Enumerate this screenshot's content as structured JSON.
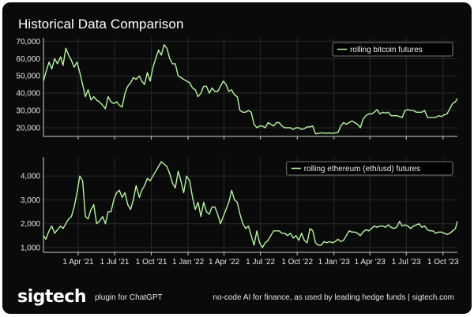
{
  "title": "Historical Data Comparison",
  "colors": {
    "background": "#0a0a0a",
    "line": "#b5f5a0",
    "grid": "#2a2a2a",
    "text": "#e8e8e8"
  },
  "footer": {
    "logo": "sigtech",
    "plugin": "plugin for ChatGPT",
    "tagline": "no-code AI for finance, as used by leading hedge funds | sigtech.com"
  },
  "chart_data": [
    {
      "type": "line",
      "title": "Historical Data Comparison",
      "series": [
        {
          "name": "rolling bitcoin futures",
          "x": [
            "2021-01-04",
            "2021-01-10",
            "2021-01-18",
            "2021-01-25",
            "2021-02-01",
            "2021-02-08",
            "2021-02-16",
            "2021-02-22",
            "2021-03-01",
            "2021-03-08",
            "2021-03-15",
            "2021-03-22",
            "2021-03-29",
            "2021-04-05",
            "2021-04-12",
            "2021-04-19",
            "2021-04-26",
            "2021-05-03",
            "2021-05-10",
            "2021-05-17",
            "2021-05-24",
            "2021-06-01",
            "2021-06-08",
            "2021-06-15",
            "2021-06-22",
            "2021-06-29",
            "2021-07-06",
            "2021-07-13",
            "2021-07-20",
            "2021-07-27",
            "2021-08-03",
            "2021-08-10",
            "2021-08-17",
            "2021-08-24",
            "2021-09-01",
            "2021-09-07",
            "2021-09-14",
            "2021-09-21",
            "2021-09-28",
            "2021-10-05",
            "2021-10-12",
            "2021-10-19",
            "2021-10-26",
            "2021-11-02",
            "2021-11-09",
            "2021-11-16",
            "2021-11-23",
            "2021-11-30",
            "2021-12-07",
            "2021-12-14",
            "2021-12-21",
            "2021-12-28",
            "2022-01-05",
            "2022-01-12",
            "2022-01-19",
            "2022-01-26",
            "2022-02-02",
            "2022-02-09",
            "2022-02-16",
            "2022-02-23",
            "2022-03-02",
            "2022-03-09",
            "2022-03-16",
            "2022-03-23",
            "2022-03-30",
            "2022-04-06",
            "2022-04-13",
            "2022-04-20",
            "2022-04-27",
            "2022-05-04",
            "2022-05-11",
            "2022-05-18",
            "2022-05-25",
            "2022-06-01",
            "2022-06-08",
            "2022-06-15",
            "2022-06-22",
            "2022-06-29",
            "2022-07-06",
            "2022-07-13",
            "2022-07-20",
            "2022-07-27",
            "2022-08-03",
            "2022-08-10",
            "2022-08-17",
            "2022-08-24",
            "2022-08-31",
            "2022-09-07",
            "2022-09-14",
            "2022-09-21",
            "2022-09-28",
            "2022-10-05",
            "2022-10-12",
            "2022-10-19",
            "2022-10-26",
            "2022-11-02",
            "2022-11-09",
            "2022-11-16",
            "2022-11-23",
            "2022-11-30",
            "2022-12-07",
            "2022-12-14",
            "2022-12-21",
            "2022-12-28",
            "2023-01-04",
            "2023-01-11",
            "2023-01-18",
            "2023-01-25",
            "2023-02-01",
            "2023-02-08",
            "2023-02-15",
            "2023-02-22",
            "2023-03-01",
            "2023-03-08",
            "2023-03-15",
            "2023-03-22",
            "2023-03-29",
            "2023-04-05",
            "2023-04-12",
            "2023-04-19",
            "2023-04-26",
            "2023-05-03",
            "2023-05-10",
            "2023-05-17",
            "2023-05-24",
            "2023-05-31",
            "2023-06-07",
            "2023-06-14",
            "2023-06-21",
            "2023-06-28",
            "2023-07-05",
            "2023-07-12",
            "2023-07-19",
            "2023-07-26",
            "2023-08-02",
            "2023-08-09",
            "2023-08-16",
            "2023-08-23",
            "2023-08-30",
            "2023-09-06",
            "2023-09-13",
            "2023-09-20",
            "2023-09-27",
            "2023-10-04",
            "2023-10-11",
            "2023-10-18",
            "2023-10-25",
            "2023-11-01",
            "2023-11-06"
          ],
          "values": [
            47000,
            52000,
            58000,
            54000,
            60000,
            57000,
            61000,
            56000,
            66000,
            62000,
            59000,
            55000,
            58000,
            52000,
            45000,
            38000,
            42000,
            36000,
            38000,
            36000,
            35000,
            33000,
            31000,
            38000,
            35000,
            34000,
            35000,
            33000,
            32000,
            40000,
            44000,
            46000,
            49000,
            48000,
            50000,
            47000,
            45000,
            52000,
            47000,
            55000,
            60000,
            65000,
            62000,
            68000,
            66000,
            60000,
            57000,
            57000,
            50000,
            49000,
            48000,
            47000,
            46000,
            43000,
            42000,
            38000,
            40000,
            44000,
            44000,
            40000,
            43000,
            41000,
            41000,
            44000,
            47000,
            45000,
            41000,
            42000,
            39000,
            38000,
            30000,
            29000,
            29000,
            30000,
            29000,
            22000,
            20000,
            21000,
            21000,
            20000,
            23000,
            22000,
            21000,
            23000,
            23000,
            21000,
            20000,
            20000,
            20000,
            19000,
            20000,
            20000,
            19000,
            19500,
            20500,
            20500,
            21000,
            16500,
            16800,
            17000,
            17000,
            16800,
            17000,
            16800,
            17000,
            17300,
            21000,
            23000,
            22000,
            23000,
            24000,
            23000,
            22000,
            20000,
            25000,
            27000,
            28000,
            28000,
            29000,
            30500,
            28000,
            29000,
            28500,
            29000,
            27000,
            27000,
            27000,
            26500,
            26000,
            30000,
            30500,
            30000,
            30000,
            29000,
            29000,
            29000,
            30000,
            26000,
            26000,
            26000,
            26000,
            27000,
            26500,
            27500,
            28000,
            31000,
            34000,
            35000,
            37000
          ]
        },
        {
          "name": "rolling ethereum (eth/usd) futures",
          "x": [
            "2021-01-04",
            "2021-01-10",
            "2021-01-18",
            "2021-01-25",
            "2021-02-01",
            "2021-02-08",
            "2021-02-16",
            "2021-02-22",
            "2021-03-01",
            "2021-03-08",
            "2021-03-15",
            "2021-03-22",
            "2021-03-29",
            "2021-04-05",
            "2021-04-12",
            "2021-04-19",
            "2021-04-26",
            "2021-05-03",
            "2021-05-10",
            "2021-05-17",
            "2021-05-24",
            "2021-06-01",
            "2021-06-08",
            "2021-06-15",
            "2021-06-22",
            "2021-06-29",
            "2021-07-06",
            "2021-07-13",
            "2021-07-20",
            "2021-07-27",
            "2021-08-03",
            "2021-08-10",
            "2021-08-17",
            "2021-08-24",
            "2021-09-01",
            "2021-09-07",
            "2021-09-14",
            "2021-09-21",
            "2021-09-28",
            "2021-10-05",
            "2021-10-12",
            "2021-10-19",
            "2021-10-26",
            "2021-11-02",
            "2021-11-09",
            "2021-11-16",
            "2021-11-23",
            "2021-11-30",
            "2021-12-07",
            "2021-12-14",
            "2021-12-21",
            "2021-12-28",
            "2022-01-05",
            "2022-01-12",
            "2022-01-19",
            "2022-01-26",
            "2022-02-02",
            "2022-02-09",
            "2022-02-16",
            "2022-02-23",
            "2022-03-02",
            "2022-03-09",
            "2022-03-16",
            "2022-03-23",
            "2022-03-30",
            "2022-04-06",
            "2022-04-13",
            "2022-04-20",
            "2022-04-27",
            "2022-05-04",
            "2022-05-11",
            "2022-05-18",
            "2022-05-25",
            "2022-06-01",
            "2022-06-08",
            "2022-06-15",
            "2022-06-22",
            "2022-06-29",
            "2022-07-06",
            "2022-07-13",
            "2022-07-20",
            "2022-07-27",
            "2022-08-03",
            "2022-08-10",
            "2022-08-17",
            "2022-08-24",
            "2022-08-31",
            "2022-09-07",
            "2022-09-14",
            "2022-09-21",
            "2022-09-28",
            "2022-10-05",
            "2022-10-12",
            "2022-10-19",
            "2022-10-26",
            "2022-11-02",
            "2022-11-09",
            "2022-11-16",
            "2022-11-23",
            "2022-11-30",
            "2022-12-07",
            "2022-12-14",
            "2022-12-21",
            "2022-12-28",
            "2023-01-04",
            "2023-01-11",
            "2023-01-18",
            "2023-01-25",
            "2023-02-01",
            "2023-02-08",
            "2023-02-15",
            "2023-02-22",
            "2023-03-01",
            "2023-03-08",
            "2023-03-15",
            "2023-03-22",
            "2023-03-29",
            "2023-04-05",
            "2023-04-12",
            "2023-04-19",
            "2023-04-26",
            "2023-05-03",
            "2023-05-10",
            "2023-05-17",
            "2023-05-24",
            "2023-05-31",
            "2023-06-07",
            "2023-06-14",
            "2023-06-21",
            "2023-06-28",
            "2023-07-05",
            "2023-07-12",
            "2023-07-19",
            "2023-07-26",
            "2023-08-02",
            "2023-08-09",
            "2023-08-16",
            "2023-08-23",
            "2023-08-30",
            "2023-09-06",
            "2023-09-13",
            "2023-09-20",
            "2023-09-27",
            "2023-10-04",
            "2023-10-11",
            "2023-10-18",
            "2023-10-25",
            "2023-11-01",
            "2023-11-06"
          ],
          "values": [
            1500,
            1350,
            1700,
            1900,
            1600,
            1750,
            1900,
            1800,
            2000,
            2200,
            2300,
            2700,
            3300,
            4000,
            3800,
            2300,
            2200,
            2600,
            2800,
            2000,
            2100,
            2300,
            2000,
            2500,
            2500,
            3000,
            3300,
            3400,
            3100,
            3300,
            2800,
            2600,
            3000,
            3600,
            3100,
            3400,
            3600,
            3900,
            3800,
            4000,
            4200,
            4400,
            4600,
            4500,
            4400,
            4100,
            3700,
            3500,
            4200,
            3800,
            3300,
            4000,
            3800,
            3100,
            2600,
            2900,
            2300,
            2900,
            2500,
            2400,
            2700,
            2700,
            2400,
            2000,
            2300,
            2600,
            2900,
            3400,
            3000,
            2900,
            2400,
            2000,
            1800,
            1900,
            1500,
            1100,
            1700,
            1200,
            1000,
            1200,
            1300,
            1500,
            1700,
            1700,
            1700,
            1600,
            1600,
            1500,
            1600,
            1400,
            1500,
            1300,
            1600,
            1300,
            1200,
            1800,
            1700,
            1200,
            1100,
            1100,
            1250,
            1200,
            1250,
            1200,
            1250,
            1350,
            1250,
            1300,
            1500,
            1700,
            1650,
            1650,
            1600,
            1500,
            1650,
            1750,
            1700,
            1800,
            1900,
            1850,
            1900,
            1900,
            1850,
            1950,
            1850,
            1800,
            1850,
            2100,
            1900,
            1950,
            1900,
            1800,
            1900,
            1950,
            2000,
            1850,
            1900,
            1750,
            1700,
            1700,
            1600,
            1650,
            1650,
            1600,
            1550,
            1600,
            1700,
            1800,
            2100
          ]
        }
      ],
      "panels": [
        {
          "series": "rolling bitcoin futures",
          "ylim": [
            15000,
            72000
          ],
          "yticks": [
            20000,
            30000,
            40000,
            50000,
            60000,
            70000
          ],
          "ytick_labels": [
            "20,000",
            "30,000",
            "40,000",
            "50,000",
            "60,000",
            "70,000"
          ],
          "legend": "top-right"
        },
        {
          "series": "rolling ethereum (eth/usd) futures",
          "ylim": [
            800,
            4800
          ],
          "yticks": [
            1000,
            2000,
            3000,
            4000
          ],
          "ytick_labels": [
            "1,000",
            "2,000",
            "3,000",
            "4,000"
          ],
          "legend": "top-right"
        }
      ],
      "xaxis": {
        "range": [
          "2021-01-04",
          "2023-11-06"
        ],
        "ticks": [
          "2021-04-01",
          "2021-07-01",
          "2021-10-01",
          "2022-01-01",
          "2022-04-01",
          "2022-07-01",
          "2022-10-01",
          "2023-01-01",
          "2023-04-01",
          "2023-07-01",
          "2023-10-01"
        ],
        "tick_labels": [
          "1 Apr '21",
          "1 Jul '21",
          "1 Oct '21",
          "1 Jan '22",
          "1 Apr '22",
          "1 Jul '22",
          "1 Oct '22",
          "1 Jan '23",
          "1 Apr '23",
          "1 Jul '23",
          "1 Oct '23"
        ]
      },
      "grid": true
    }
  ]
}
